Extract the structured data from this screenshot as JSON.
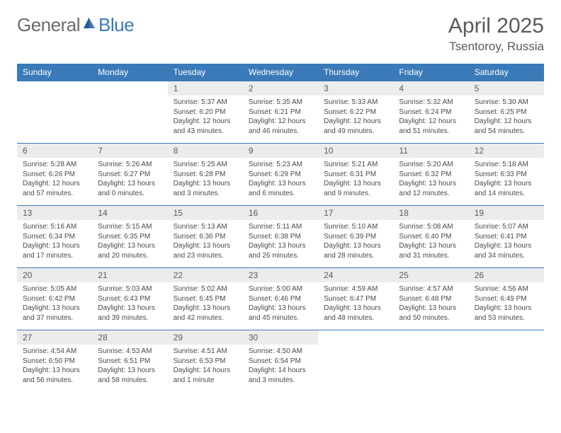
{
  "logo": {
    "part1": "General",
    "part2": "Blue"
  },
  "title": "April 2025",
  "location": "Tsentoroy, Russia",
  "colors": {
    "header_bg": "#3a7ab8",
    "header_text": "#ffffff",
    "daynum_bg": "#ececec",
    "text": "#5a5a5a",
    "border": "#3a7ab8"
  },
  "day_names": [
    "Sunday",
    "Monday",
    "Tuesday",
    "Wednesday",
    "Thursday",
    "Friday",
    "Saturday"
  ],
  "weeks": [
    [
      null,
      null,
      {
        "n": "1",
        "sunrise": "5:37 AM",
        "sunset": "6:20 PM",
        "day_h": "12",
        "day_m": "43"
      },
      {
        "n": "2",
        "sunrise": "5:35 AM",
        "sunset": "6:21 PM",
        "day_h": "12",
        "day_m": "46"
      },
      {
        "n": "3",
        "sunrise": "5:33 AM",
        "sunset": "6:22 PM",
        "day_h": "12",
        "day_m": "49"
      },
      {
        "n": "4",
        "sunrise": "5:32 AM",
        "sunset": "6:24 PM",
        "day_h": "12",
        "day_m": "51"
      },
      {
        "n": "5",
        "sunrise": "5:30 AM",
        "sunset": "6:25 PM",
        "day_h": "12",
        "day_m": "54"
      }
    ],
    [
      {
        "n": "6",
        "sunrise": "5:28 AM",
        "sunset": "6:26 PM",
        "day_h": "12",
        "day_m": "57"
      },
      {
        "n": "7",
        "sunrise": "5:26 AM",
        "sunset": "6:27 PM",
        "day_h": "13",
        "day_m": "0"
      },
      {
        "n": "8",
        "sunrise": "5:25 AM",
        "sunset": "6:28 PM",
        "day_h": "13",
        "day_m": "3"
      },
      {
        "n": "9",
        "sunrise": "5:23 AM",
        "sunset": "6:29 PM",
        "day_h": "13",
        "day_m": "6"
      },
      {
        "n": "10",
        "sunrise": "5:21 AM",
        "sunset": "6:31 PM",
        "day_h": "13",
        "day_m": "9"
      },
      {
        "n": "11",
        "sunrise": "5:20 AM",
        "sunset": "6:32 PM",
        "day_h": "13",
        "day_m": "12"
      },
      {
        "n": "12",
        "sunrise": "5:18 AM",
        "sunset": "6:33 PM",
        "day_h": "13",
        "day_m": "14"
      }
    ],
    [
      {
        "n": "13",
        "sunrise": "5:16 AM",
        "sunset": "6:34 PM",
        "day_h": "13",
        "day_m": "17"
      },
      {
        "n": "14",
        "sunrise": "5:15 AM",
        "sunset": "6:35 PM",
        "day_h": "13",
        "day_m": "20"
      },
      {
        "n": "15",
        "sunrise": "5:13 AM",
        "sunset": "6:36 PM",
        "day_h": "13",
        "day_m": "23"
      },
      {
        "n": "16",
        "sunrise": "5:11 AM",
        "sunset": "6:38 PM",
        "day_h": "13",
        "day_m": "26"
      },
      {
        "n": "17",
        "sunrise": "5:10 AM",
        "sunset": "6:39 PM",
        "day_h": "13",
        "day_m": "28"
      },
      {
        "n": "18",
        "sunrise": "5:08 AM",
        "sunset": "6:40 PM",
        "day_h": "13",
        "day_m": "31"
      },
      {
        "n": "19",
        "sunrise": "5:07 AM",
        "sunset": "6:41 PM",
        "day_h": "13",
        "day_m": "34"
      }
    ],
    [
      {
        "n": "20",
        "sunrise": "5:05 AM",
        "sunset": "6:42 PM",
        "day_h": "13",
        "day_m": "37"
      },
      {
        "n": "21",
        "sunrise": "5:03 AM",
        "sunset": "6:43 PM",
        "day_h": "13",
        "day_m": "39"
      },
      {
        "n": "22",
        "sunrise": "5:02 AM",
        "sunset": "6:45 PM",
        "day_h": "13",
        "day_m": "42"
      },
      {
        "n": "23",
        "sunrise": "5:00 AM",
        "sunset": "6:46 PM",
        "day_h": "13",
        "day_m": "45"
      },
      {
        "n": "24",
        "sunrise": "4:59 AM",
        "sunset": "6:47 PM",
        "day_h": "13",
        "day_m": "48"
      },
      {
        "n": "25",
        "sunrise": "4:57 AM",
        "sunset": "6:48 PM",
        "day_h": "13",
        "day_m": "50"
      },
      {
        "n": "26",
        "sunrise": "4:56 AM",
        "sunset": "6:49 PM",
        "day_h": "13",
        "day_m": "53"
      }
    ],
    [
      {
        "n": "27",
        "sunrise": "4:54 AM",
        "sunset": "6:50 PM",
        "day_h": "13",
        "day_m": "56"
      },
      {
        "n": "28",
        "sunrise": "4:53 AM",
        "sunset": "6:51 PM",
        "day_h": "13",
        "day_m": "58"
      },
      {
        "n": "29",
        "sunrise": "4:51 AM",
        "sunset": "6:53 PM",
        "day_h": "14",
        "day_m": "1",
        "day_m_word": "minute"
      },
      {
        "n": "30",
        "sunrise": "4:50 AM",
        "sunset": "6:54 PM",
        "day_h": "14",
        "day_m": "3"
      },
      null,
      null,
      null
    ]
  ],
  "labels": {
    "sunrise": "Sunrise:",
    "sunset": "Sunset:",
    "daylight": "Daylight:",
    "hours": "hours",
    "and": "and",
    "minutes": "minutes."
  }
}
